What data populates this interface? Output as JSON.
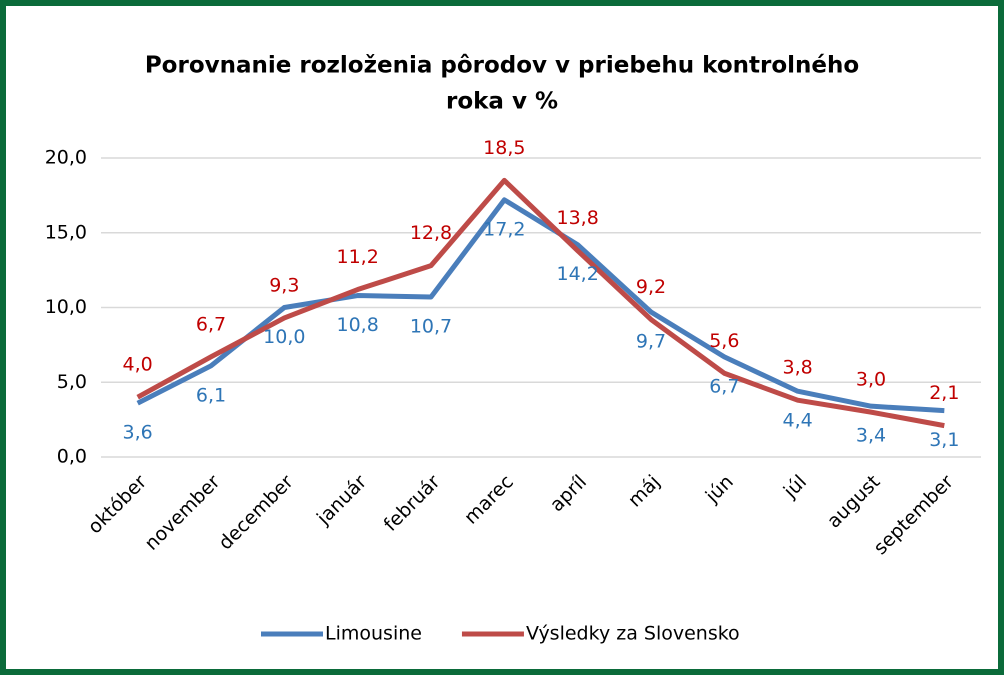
{
  "chart_data": {
    "type": "line",
    "title": [
      "Porovnanie rozloženia pôrodov v priebehu kontrolného",
      "roka v %"
    ],
    "categories": [
      "október",
      "november",
      "december",
      "január",
      "február",
      "marec",
      "apríl",
      "máj",
      "jún",
      "júl",
      "august",
      "september"
    ],
    "series": [
      {
        "name": "Limousine",
        "color": "#4a7ebb",
        "label_color": "#2e75b6",
        "values": [
          3.6,
          6.1,
          10.0,
          10.8,
          10.7,
          17.2,
          14.2,
          9.7,
          6.7,
          4.4,
          3.4,
          3.1
        ],
        "value_labels": [
          "3,6",
          "6,1",
          "10,0",
          "10,8",
          "10,7",
          "17,2",
          "14,2",
          "9,7",
          "6,7",
          "4,4",
          "3,4",
          "3,1"
        ]
      },
      {
        "name": "Výsledky za Slovensko",
        "color": "#be4b48",
        "label_color": "#c00000",
        "values": [
          4.0,
          6.7,
          9.3,
          11.2,
          12.8,
          18.5,
          13.8,
          9.2,
          5.6,
          3.8,
          3.0,
          2.1
        ],
        "value_labels": [
          "4,0",
          "6,7",
          "9,3",
          "11,2",
          "12,8",
          "18,5",
          "13,8",
          "9,2",
          "5,6",
          "3,8",
          "3,0",
          "2,1"
        ]
      }
    ],
    "ylim": [
      0,
      20
    ],
    "yticks": [
      {
        "value": 0,
        "label": "0,0"
      },
      {
        "value": 5,
        "label": "5,0"
      },
      {
        "value": 10,
        "label": "10,0"
      },
      {
        "value": 15,
        "label": "15,0"
      },
      {
        "value": 20,
        "label": "20,0"
      }
    ],
    "grid": true,
    "legend": "bottom"
  }
}
